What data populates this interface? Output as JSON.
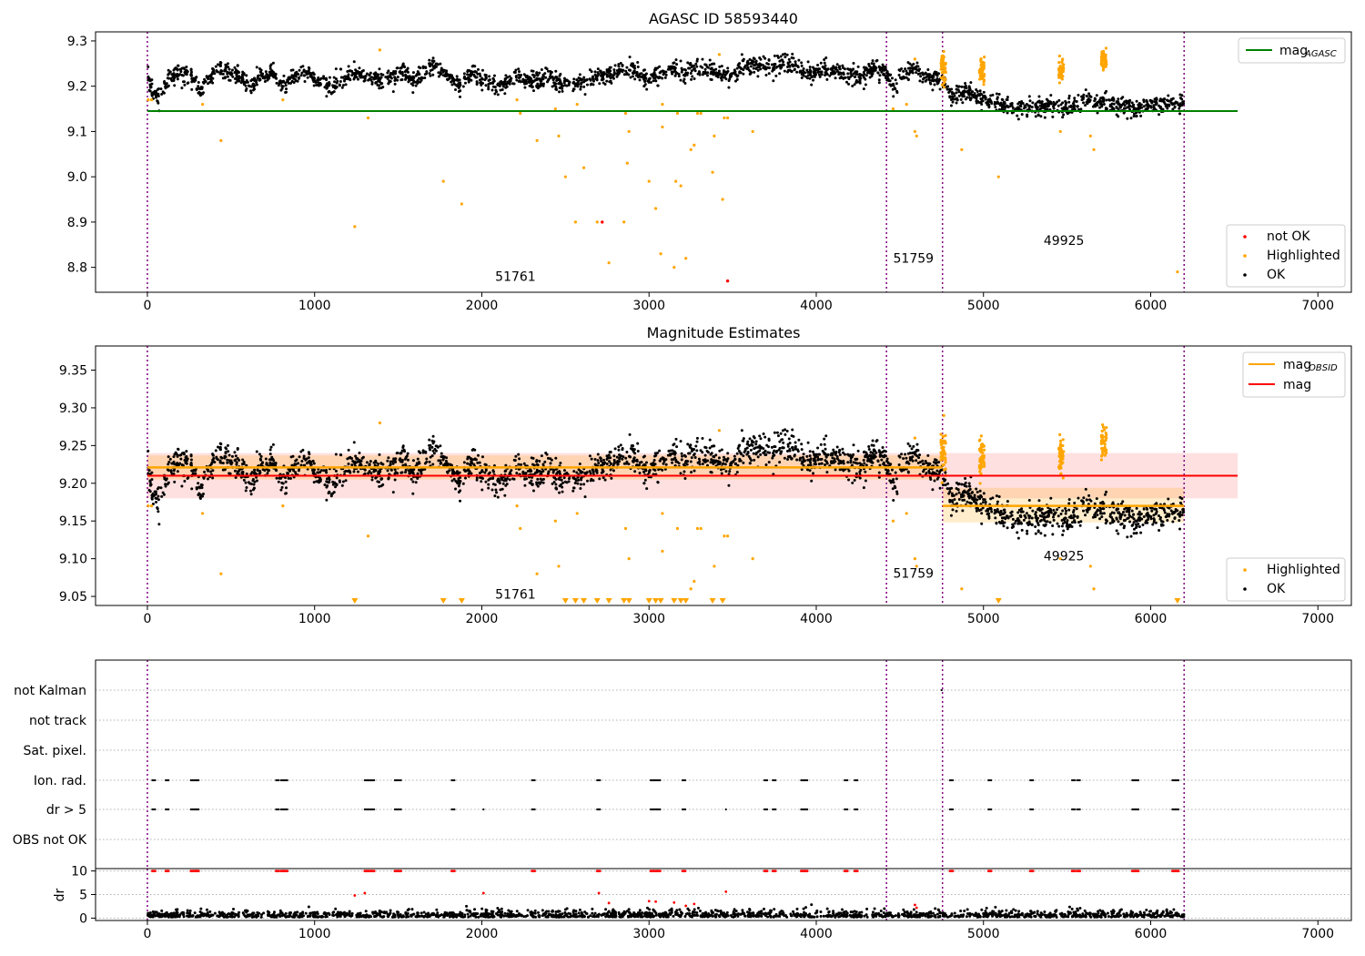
{
  "chart_data": [
    {
      "type": "scatter",
      "title": "AGASC ID 58593440",
      "xlim": [
        -310,
        7200
      ],
      "ylim": [
        8.745,
        9.32
      ],
      "xticks": [
        "0",
        "1000",
        "2000",
        "3000",
        "4000",
        "5000",
        "6000",
        "7000"
      ],
      "yticks": [
        "8.8",
        "8.9",
        "9.0",
        "9.1",
        "9.2",
        "9.3"
      ],
      "grid": false,
      "legend_upper": {
        "position": "top-right",
        "entries": [
          "mag",
          "AGASC"
        ]
      },
      "legend_lower": {
        "position": "bottom-right",
        "entries": [
          "not OK",
          "Highlighted",
          "OK"
        ]
      },
      "agasc_mag": 9.145,
      "agasc_line_x": [
        0,
        6520
      ],
      "obsid_boundaries": [
        0,
        4420,
        4755,
        6200
      ],
      "annotations": [
        {
          "text": "51761",
          "x": 2080,
          "y": 8.77
        },
        {
          "text": "51759",
          "x": 4460,
          "y": 8.81
        },
        {
          "text": "49925",
          "x": 5360,
          "y": 8.85
        }
      ],
      "ok_trend": [
        [
          0,
          9.22
        ],
        [
          30,
          9.19
        ],
        [
          70,
          9.18
        ],
        [
          130,
          9.22
        ],
        [
          200,
          9.23
        ],
        [
          270,
          9.22
        ],
        [
          320,
          9.19
        ],
        [
          380,
          9.22
        ],
        [
          430,
          9.24
        ],
        [
          500,
          9.23
        ],
        [
          560,
          9.22
        ],
        [
          620,
          9.2
        ],
        [
          680,
          9.22
        ],
        [
          750,
          9.23
        ],
        [
          810,
          9.2
        ],
        [
          870,
          9.22
        ],
        [
          950,
          9.23
        ],
        [
          1020,
          9.21
        ],
        [
          1100,
          9.2
        ],
        [
          1180,
          9.22
        ],
        [
          1260,
          9.23
        ],
        [
          1330,
          9.22
        ],
        [
          1400,
          9.21
        ],
        [
          1460,
          9.22
        ],
        [
          1530,
          9.23
        ],
        [
          1590,
          9.21
        ],
        [
          1650,
          9.23
        ],
        [
          1720,
          9.24
        ],
        [
          1800,
          9.22
        ],
        [
          1870,
          9.2
        ],
        [
          1950,
          9.23
        ],
        [
          2020,
          9.21
        ],
        [
          2100,
          9.2
        ],
        [
          2200,
          9.22
        ],
        [
          2300,
          9.21
        ],
        [
          2400,
          9.22
        ],
        [
          2500,
          9.2
        ],
        [
          2600,
          9.21
        ],
        [
          2700,
          9.22
        ],
        [
          2800,
          9.23
        ],
        [
          2900,
          9.24
        ],
        [
          3000,
          9.21
        ],
        [
          3100,
          9.24
        ],
        [
          3200,
          9.23
        ],
        [
          3300,
          9.24
        ],
        [
          3400,
          9.23
        ],
        [
          3480,
          9.22
        ],
        [
          3560,
          9.24
        ],
        [
          3650,
          9.25
        ],
        [
          3750,
          9.24
        ],
        [
          3850,
          9.25
        ],
        [
          3950,
          9.23
        ],
        [
          4050,
          9.24
        ],
        [
          4150,
          9.23
        ],
        [
          4250,
          9.22
        ],
        [
          4350,
          9.24
        ],
        [
          4420,
          9.23
        ],
        [
          4460,
          9.2
        ],
        [
          4560,
          9.24
        ],
        [
          4650,
          9.22
        ],
        [
          4755,
          9.21
        ],
        [
          4800,
          9.18
        ],
        [
          4900,
          9.19
        ],
        [
          5000,
          9.17
        ],
        [
          5100,
          9.16
        ],
        [
          5200,
          9.15
        ],
        [
          5300,
          9.15
        ],
        [
          5400,
          9.16
        ],
        [
          5500,
          9.15
        ],
        [
          5600,
          9.17
        ],
        [
          5700,
          9.16
        ],
        [
          5800,
          9.16
        ],
        [
          5900,
          9.15
        ],
        [
          6000,
          9.16
        ],
        [
          6100,
          9.16
        ],
        [
          6200,
          9.16
        ]
      ],
      "ok_scatter": 0.018,
      "highlighted_points": [
        [
          5,
          9.17
        ],
        [
          25,
          9.17
        ],
        [
          330,
          9.16
        ],
        [
          440,
          9.08
        ],
        [
          810,
          9.17
        ],
        [
          1240,
          8.89
        ],
        [
          1320,
          9.13
        ],
        [
          1390,
          9.28
        ],
        [
          1770,
          8.99
        ],
        [
          1880,
          8.94
        ],
        [
          2210,
          9.17
        ],
        [
          2230,
          9.14
        ],
        [
          2330,
          9.08
        ],
        [
          2440,
          9.15
        ],
        [
          2460,
          9.09
        ],
        [
          2500,
          9.0
        ],
        [
          2560,
          8.9
        ],
        [
          2570,
          9.16
        ],
        [
          2610,
          9.02
        ],
        [
          2690,
          8.9
        ],
        [
          2760,
          8.81
        ],
        [
          2850,
          8.9
        ],
        [
          2860,
          9.14
        ],
        [
          2870,
          9.03
        ],
        [
          2880,
          9.1
        ],
        [
          3000,
          8.99
        ],
        [
          3040,
          8.93
        ],
        [
          3070,
          8.83
        ],
        [
          3080,
          9.16
        ],
        [
          3080,
          9.11
        ],
        [
          3150,
          8.8
        ],
        [
          3160,
          8.99
        ],
        [
          3170,
          9.14
        ],
        [
          3190,
          8.98
        ],
        [
          3220,
          8.82
        ],
        [
          3250,
          9.06
        ],
        [
          3270,
          9.07
        ],
        [
          3290,
          9.14
        ],
        [
          3310,
          9.14
        ],
        [
          3380,
          9.01
        ],
        [
          3390,
          9.09
        ],
        [
          3420,
          9.27
        ],
        [
          3440,
          8.95
        ],
        [
          3450,
          9.13
        ],
        [
          3470,
          9.13
        ],
        [
          3620,
          9.1
        ],
        [
          4460,
          9.15
        ],
        [
          4540,
          9.16
        ],
        [
          4590,
          9.1
        ],
        [
          4600,
          9.09
        ],
        [
          4590,
          9.26
        ],
        [
          4870,
          9.06
        ],
        [
          5090,
          9.0
        ],
        [
          5460,
          9.1
        ],
        [
          5640,
          9.09
        ],
        [
          5660,
          9.06
        ],
        [
          6160,
          8.79
        ]
      ],
      "highlighted_clusters": [
        [
          4760,
          9.24,
          0.014
        ],
        [
          4990,
          9.235,
          0.014
        ],
        [
          5465,
          9.235,
          0.013
        ],
        [
          5720,
          9.255,
          0.011
        ]
      ],
      "not_ok_points": [
        [
          2720,
          8.9
        ],
        [
          3470,
          8.77
        ]
      ]
    },
    {
      "type": "scatter",
      "title": "Magnitude Estimates",
      "xlim": [
        -310,
        7200
      ],
      "ylim": [
        9.038,
        9.382
      ],
      "xticks": [
        "0",
        "1000",
        "2000",
        "3000",
        "4000",
        "5000",
        "6000",
        "7000"
      ],
      "yticks": [
        "9.05",
        "9.10",
        "9.15",
        "9.20",
        "9.25",
        "9.30",
        "9.35"
      ],
      "grid": false,
      "legend_upper": {
        "position": "top-right",
        "entries": [
          "mag",
          "OBSID",
          "mag"
        ]
      },
      "legend_lower": {
        "position": "bottom-right",
        "entries": [
          "Highlighted",
          "OK"
        ]
      },
      "mag": 9.21,
      "mag_band": [
        9.18,
        9.24
      ],
      "mag_line_x": [
        0,
        6520
      ],
      "obsid_mags": [
        {
          "x0": 0,
          "x1": 4755,
          "mag": 9.221,
          "band": [
            9.205,
            9.237
          ]
        },
        {
          "x0": 4755,
          "x1": 6200,
          "mag": 9.17,
          "band": [
            9.148,
            9.194
          ]
        }
      ],
      "obsid_boundaries": [
        0,
        4420,
        4755,
        6200
      ],
      "annotations": [
        {
          "text": "51761",
          "x": 2080,
          "y": 9.047
        },
        {
          "text": "51759",
          "x": 4460,
          "y": 9.075
        },
        {
          "text": "49925",
          "x": 5360,
          "y": 9.098
        }
      ],
      "lower_limit_markers": [
        1240,
        1770,
        1880,
        2500,
        2560,
        2610,
        2690,
        2760,
        2850,
        2880,
        3000,
        3040,
        3070,
        3150,
        3190,
        3220,
        3380,
        3440,
        5090,
        6160
      ]
    },
    {
      "type": "scatter",
      "title": "",
      "xlim": [
        -310,
        7200
      ],
      "xticks": [
        "0",
        "1000",
        "2000",
        "3000",
        "4000",
        "5000",
        "6000",
        "7000"
      ],
      "flag_rows": [
        "not Kalman",
        "not track",
        "Sat. pixel.",
        "Ion. rad.",
        "dr > 5",
        "OBS not OK"
      ],
      "obsid_boundaries": [
        0,
        4420,
        4755,
        6200
      ],
      "flag_positions": [
        30,
        110,
        260,
        280,
        290,
        770,
        800,
        820,
        1300,
        1320,
        1340,
        1480,
        1500,
        1820,
        2300,
        2690,
        3010,
        3030,
        3050,
        3200,
        3690,
        3740,
        3910,
        3930,
        4170,
        4230,
        4800,
        5030,
        5280,
        5530,
        5560,
        5890,
        5910,
        6130,
        6150
      ],
      "dr_flag_extra": [
        2010,
        2700,
        3460
      ],
      "not_kalman_points": [
        4750
      ]
    },
    {
      "type": "scatter",
      "title": "",
      "ylabel": "dr",
      "xlim": [
        -310,
        7200
      ],
      "ylim": [
        -0.5,
        10.5
      ],
      "xticks": [
        "0",
        "1000",
        "2000",
        "3000",
        "4000",
        "5000",
        "6000",
        "7000"
      ],
      "yticks": [
        "0",
        "5",
        "10"
      ],
      "grid": true,
      "obsid_boundaries": [
        0,
        4420,
        4755,
        6200
      ],
      "red_points": [
        [
          1240,
          4.8
        ],
        [
          1300,
          5.3
        ],
        [
          2010,
          5.3
        ],
        [
          2700,
          5.3
        ],
        [
          2760,
          3.2
        ],
        [
          3000,
          3.6
        ],
        [
          3040,
          3.5
        ],
        [
          3150,
          3.3
        ],
        [
          3220,
          2.6
        ],
        [
          3270,
          3.0
        ],
        [
          3460,
          5.6
        ],
        [
          4590,
          2.8
        ],
        [
          4600,
          2.2
        ]
      ],
      "cap_value": 10
    }
  ]
}
